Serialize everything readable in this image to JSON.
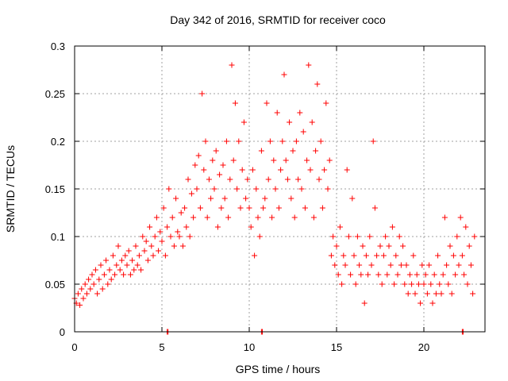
{
  "chart_data": {
    "type": "scatter",
    "title": "Day 342 of 2016, SRMTID for receiver coco",
    "xlabel": "GPS time / hours",
    "ylabel": "SRMTID / TECUs",
    "xlim": [
      0,
      23.5
    ],
    "ylim": [
      0,
      0.3
    ],
    "x_ticks": [
      0,
      5,
      10,
      15,
      20
    ],
    "y_ticks": [
      0,
      0.05,
      0.1,
      0.15,
      0.2,
      0.25,
      0.3
    ],
    "x_tick_labels": [
      "0",
      "5",
      "10",
      "15",
      "20"
    ],
    "y_tick_labels": [
      "0",
      "0.05",
      "0.1",
      "0.15",
      "0.2",
      "0.25",
      "0.3"
    ],
    "grid": true,
    "marker": "+",
    "series_color": "#ff0000",
    "series": [
      {
        "name": "SRMTID",
        "points": [
          [
            0.0,
            0.035
          ],
          [
            0.1,
            0.03
          ],
          [
            0.2,
            0.04
          ],
          [
            0.3,
            0.028
          ],
          [
            0.4,
            0.045
          ],
          [
            0.5,
            0.035
          ],
          [
            0.6,
            0.05
          ],
          [
            0.7,
            0.04
          ],
          [
            0.8,
            0.055
          ],
          [
            0.9,
            0.045
          ],
          [
            1.0,
            0.06
          ],
          [
            1.1,
            0.05
          ],
          [
            1.2,
            0.065
          ],
          [
            1.3,
            0.04
          ],
          [
            1.4,
            0.055
          ],
          [
            1.5,
            0.07
          ],
          [
            1.6,
            0.045
          ],
          [
            1.7,
            0.06
          ],
          [
            1.8,
            0.075
          ],
          [
            1.9,
            0.05
          ],
          [
            2.0,
            0.065
          ],
          [
            2.1,
            0.055
          ],
          [
            2.2,
            0.08
          ],
          [
            2.3,
            0.06
          ],
          [
            2.4,
            0.07
          ],
          [
            2.5,
            0.09
          ],
          [
            2.6,
            0.065
          ],
          [
            2.7,
            0.075
          ],
          [
            2.8,
            0.06
          ],
          [
            2.9,
            0.08
          ],
          [
            3.0,
            0.07
          ],
          [
            3.1,
            0.085
          ],
          [
            3.2,
            0.06
          ],
          [
            3.3,
            0.075
          ],
          [
            3.4,
            0.065
          ],
          [
            3.5,
            0.09
          ],
          [
            3.6,
            0.07
          ],
          [
            3.7,
            0.08
          ],
          [
            3.8,
            0.065
          ],
          [
            3.9,
            0.1
          ],
          [
            4.0,
            0.085
          ],
          [
            4.1,
            0.095
          ],
          [
            4.2,
            0.075
          ],
          [
            4.3,
            0.11
          ],
          [
            4.4,
            0.09
          ],
          [
            4.5,
            0.08
          ],
          [
            4.6,
            0.1
          ],
          [
            4.7,
            0.12
          ],
          [
            4.8,
            0.085
          ],
          [
            4.9,
            0.105
          ],
          [
            5.0,
            0.095
          ],
          [
            5.1,
            0.13
          ],
          [
            5.2,
            0.08
          ],
          [
            5.3,
            0.11
          ],
          [
            5.4,
            0.15
          ],
          [
            5.5,
            0.1
          ],
          [
            5.6,
            0.12
          ],
          [
            5.7,
            0.09
          ],
          [
            5.8,
            0.14
          ],
          [
            5.9,
            0.105
          ],
          [
            6.0,
            0.1
          ],
          [
            6.1,
            0.125
          ],
          [
            6.2,
            0.09
          ],
          [
            6.3,
            0.13
          ],
          [
            6.4,
            0.11
          ],
          [
            6.5,
            0.16
          ],
          [
            6.6,
            0.1
          ],
          [
            6.7,
            0.145
          ],
          [
            6.8,
            0.12
          ],
          [
            6.9,
            0.175
          ],
          [
            7.0,
            0.15
          ],
          [
            7.1,
            0.185
          ],
          [
            7.2,
            0.13
          ],
          [
            7.3,
            0.25
          ],
          [
            7.4,
            0.17
          ],
          [
            7.5,
            0.2
          ],
          [
            7.6,
            0.12
          ],
          [
            7.7,
            0.16
          ],
          [
            7.8,
            0.14
          ],
          [
            7.9,
            0.18
          ],
          [
            8.0,
            0.15
          ],
          [
            8.1,
            0.19
          ],
          [
            8.2,
            0.11
          ],
          [
            8.3,
            0.165
          ],
          [
            8.4,
            0.13
          ],
          [
            8.5,
            0.175
          ],
          [
            8.6,
            0.14
          ],
          [
            8.7,
            0.2
          ],
          [
            8.8,
            0.12
          ],
          [
            8.9,
            0.16
          ],
          [
            9.0,
            0.28
          ],
          [
            9.1,
            0.18
          ],
          [
            9.2,
            0.24
          ],
          [
            9.3,
            0.15
          ],
          [
            9.4,
            0.2
          ],
          [
            9.5,
            0.13
          ],
          [
            9.6,
            0.17
          ],
          [
            9.7,
            0.22
          ],
          [
            9.8,
            0.14
          ],
          [
            9.9,
            0.16
          ],
          [
            10.0,
            0.13
          ],
          [
            10.1,
            0.11
          ],
          [
            10.2,
            0.17
          ],
          [
            10.3,
            0.08
          ],
          [
            10.4,
            0.15
          ],
          [
            10.5,
            0.12
          ],
          [
            10.6,
            0.1
          ],
          [
            10.7,
            0.19
          ],
          [
            10.8,
            0.13
          ],
          [
            10.9,
            0.14
          ],
          [
            11.0,
            0.24
          ],
          [
            11.1,
            0.16
          ],
          [
            11.2,
            0.2
          ],
          [
            11.3,
            0.12
          ],
          [
            11.4,
            0.18
          ],
          [
            11.5,
            0.15
          ],
          [
            11.6,
            0.23
          ],
          [
            11.7,
            0.13
          ],
          [
            11.8,
            0.17
          ],
          [
            11.9,
            0.2
          ],
          [
            12.0,
            0.27
          ],
          [
            12.1,
            0.18
          ],
          [
            12.2,
            0.16
          ],
          [
            12.3,
            0.22
          ],
          [
            12.4,
            0.14
          ],
          [
            12.5,
            0.19
          ],
          [
            12.6,
            0.12
          ],
          [
            12.7,
            0.2
          ],
          [
            12.8,
            0.16
          ],
          [
            12.9,
            0.23
          ],
          [
            13.0,
            0.15
          ],
          [
            13.1,
            0.21
          ],
          [
            13.2,
            0.13
          ],
          [
            13.3,
            0.18
          ],
          [
            13.4,
            0.28
          ],
          [
            13.5,
            0.17
          ],
          [
            13.6,
            0.22
          ],
          [
            13.7,
            0.12
          ],
          [
            13.8,
            0.19
          ],
          [
            13.9,
            0.26
          ],
          [
            14.0,
            0.16
          ],
          [
            14.1,
            0.2
          ],
          [
            14.2,
            0.13
          ],
          [
            14.3,
            0.17
          ],
          [
            14.4,
            0.24
          ],
          [
            14.5,
            0.15
          ],
          [
            14.6,
            0.18
          ],
          [
            14.7,
            0.08
          ],
          [
            14.8,
            0.1
          ],
          [
            14.9,
            0.07
          ],
          [
            15.0,
            0.09
          ],
          [
            15.1,
            0.06
          ],
          [
            15.2,
            0.11
          ],
          [
            15.3,
            0.05
          ],
          [
            15.4,
            0.08
          ],
          [
            15.5,
            0.07
          ],
          [
            15.6,
            0.17
          ],
          [
            15.7,
            0.1
          ],
          [
            15.8,
            0.06
          ],
          [
            15.9,
            0.14
          ],
          [
            16.0,
            0.08
          ],
          [
            16.1,
            0.05
          ],
          [
            16.2,
            0.1
          ],
          [
            16.3,
            0.07
          ],
          [
            16.4,
            0.06
          ],
          [
            16.5,
            0.09
          ],
          [
            16.6,
            0.03
          ],
          [
            16.7,
            0.08
          ],
          [
            16.8,
            0.06
          ],
          [
            16.9,
            0.1
          ],
          [
            17.0,
            0.07
          ],
          [
            17.1,
            0.2
          ],
          [
            17.2,
            0.13
          ],
          [
            17.3,
            0.08
          ],
          [
            17.4,
            0.06
          ],
          [
            17.5,
            0.09
          ],
          [
            17.6,
            0.05
          ],
          [
            17.7,
            0.08
          ],
          [
            17.8,
            0.1
          ],
          [
            17.9,
            0.06
          ],
          [
            18.0,
            0.09
          ],
          [
            18.1,
            0.07
          ],
          [
            18.2,
            0.11
          ],
          [
            18.3,
            0.05
          ],
          [
            18.4,
            0.08
          ],
          [
            18.5,
            0.06
          ],
          [
            18.6,
            0.1
          ],
          [
            18.7,
            0.07
          ],
          [
            18.8,
            0.09
          ],
          [
            18.9,
            0.05
          ],
          [
            19.0,
            0.07
          ],
          [
            19.1,
            0.04
          ],
          [
            19.2,
            0.06
          ],
          [
            19.3,
            0.05
          ],
          [
            19.4,
            0.08
          ],
          [
            19.5,
            0.04
          ],
          [
            19.6,
            0.06
          ],
          [
            19.7,
            0.05
          ],
          [
            19.8,
            0.03
          ],
          [
            19.9,
            0.07
          ],
          [
            20.0,
            0.05
          ],
          [
            20.1,
            0.06
          ],
          [
            20.2,
            0.04
          ],
          [
            20.3,
            0.07
          ],
          [
            20.4,
            0.05
          ],
          [
            20.5,
            0.03
          ],
          [
            20.6,
            0.06
          ],
          [
            20.7,
            0.04
          ],
          [
            20.8,
            0.08
          ],
          [
            20.9,
            0.05
          ],
          [
            21.0,
            0.04
          ],
          [
            21.1,
            0.06
          ],
          [
            21.2,
            0.12
          ],
          [
            21.3,
            0.07
          ],
          [
            21.4,
            0.05
          ],
          [
            21.5,
            0.09
          ],
          [
            21.6,
            0.04
          ],
          [
            21.7,
            0.08
          ],
          [
            21.8,
            0.06
          ],
          [
            21.9,
            0.1
          ],
          [
            22.0,
            0.07
          ],
          [
            22.1,
            0.12
          ],
          [
            22.2,
            0.08
          ],
          [
            22.3,
            0.06
          ],
          [
            22.4,
            0.11
          ],
          [
            22.5,
            0.05
          ],
          [
            22.6,
            0.09
          ],
          [
            22.7,
            0.07
          ],
          [
            22.8,
            0.04
          ],
          [
            22.9,
            0.1
          ],
          [
            5.3,
            0.0
          ],
          [
            5.35,
            0.0
          ],
          [
            10.7,
            0.0
          ],
          [
            10.75,
            0.0
          ],
          [
            22.2,
            0.0
          ],
          [
            22.25,
            0.0
          ]
        ]
      }
    ]
  }
}
